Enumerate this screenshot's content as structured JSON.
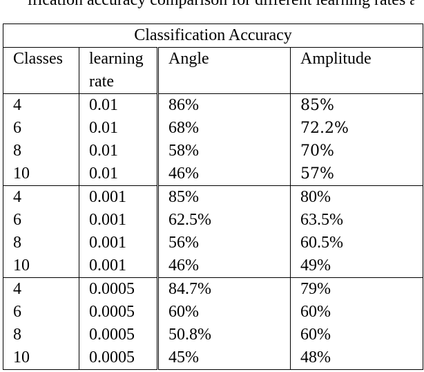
{
  "caption_fragment": "ification accuracy comparison for different learning rates and",
  "table": {
    "title": "Classification Accuracy",
    "headers": {
      "classes": "Classes",
      "learning_rate_line1": "learning",
      "learning_rate_line2": "rate",
      "angle": "Angle",
      "amplitude": "Amplitude"
    },
    "rows": [
      {
        "classes": "4",
        "lr": "0.01",
        "angle": "86%",
        "amplitude": "85%",
        "amplitude_bold": true
      },
      {
        "classes": "6",
        "lr": "0.01",
        "angle": "68%",
        "amplitude": "72.2%",
        "amplitude_bold": true
      },
      {
        "classes": "8",
        "lr": "0.01",
        "angle": "58%",
        "amplitude": "70%",
        "amplitude_bold": true
      },
      {
        "classes": "10",
        "lr": "0.01",
        "angle": "46%",
        "amplitude": "57%",
        "amplitude_bold": true
      },
      {
        "classes": "4",
        "lr": "0.001",
        "angle": "85%",
        "amplitude": "80%",
        "amplitude_bold": false
      },
      {
        "classes": "6",
        "lr": "0.001",
        "angle": "62.5%",
        "amplitude": "63.5%",
        "amplitude_bold": false
      },
      {
        "classes": "8",
        "lr": "0.001",
        "angle": "56%",
        "amplitude": "60.5%",
        "amplitude_bold": false
      },
      {
        "classes": "10",
        "lr": "0.001",
        "angle": "46%",
        "amplitude": "49%",
        "amplitude_bold": false
      },
      {
        "classes": "4",
        "lr": "0.0005",
        "angle": "84.7%",
        "amplitude": "79%",
        "amplitude_bold": false
      },
      {
        "classes": "6",
        "lr": "0.0005",
        "angle": "60%",
        "amplitude": "60%",
        "amplitude_bold": false
      },
      {
        "classes": "8",
        "lr": "0.0005",
        "angle": "50.8%",
        "amplitude": "60%",
        "amplitude_bold": false
      },
      {
        "classes": "10",
        "lr": "0.0005",
        "angle": "45%",
        "amplitude": "48%",
        "amplitude_bold": false
      }
    ]
  }
}
